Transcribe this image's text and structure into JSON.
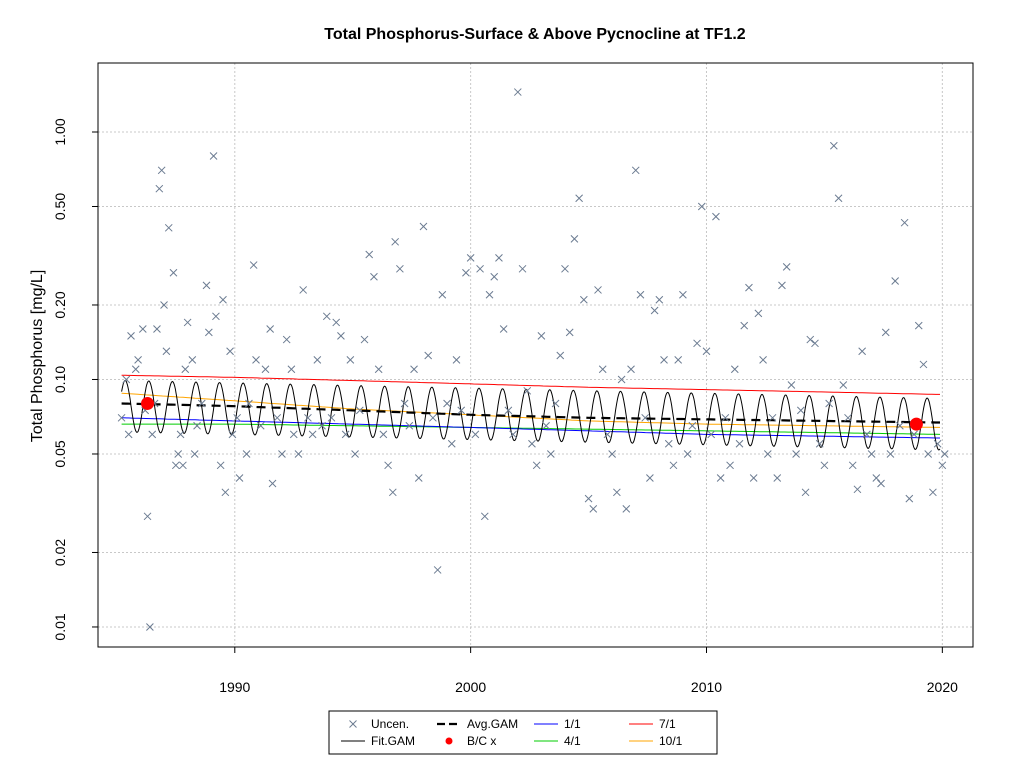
{
  "chart_data": {
    "type": "scatter",
    "title": "Total Phosphorus-Surface & Above Pycnocline at TF1.2",
    "xlabel": "",
    "ylabel": "Total Phosphorus [mg/L]",
    "x_scale": "linear",
    "y_scale": "log",
    "xlim": [
      1984.2,
      2021.3
    ],
    "ylim": [
      0.0083,
      1.9
    ],
    "grid": true,
    "x_ticks": [
      {
        "value": 1990,
        "label": "1990"
      },
      {
        "value": 2000,
        "label": "2000"
      },
      {
        "value": 2010,
        "label": "2010"
      },
      {
        "value": 2020,
        "label": "2020"
      }
    ],
    "y_ticks": [
      {
        "value": 0.01,
        "label": "0.01"
      },
      {
        "value": 0.02,
        "label": "0.02"
      },
      {
        "value": 0.05,
        "label": "0.05"
      },
      {
        "value": 0.1,
        "label": "0.10"
      },
      {
        "value": 0.2,
        "label": "0.20"
      },
      {
        "value": 0.5,
        "label": "0.50"
      },
      {
        "value": 1.0,
        "label": "1.00"
      }
    ],
    "observations": {
      "name": "Uncen.",
      "marker": "x",
      "color": "#6b7b91",
      "points": [
        [
          1985.2,
          0.07
        ],
        [
          1985.4,
          0.1
        ],
        [
          1985.5,
          0.06
        ],
        [
          1985.6,
          0.15
        ],
        [
          1985.8,
          0.11
        ],
        [
          1985.9,
          0.12
        ],
        [
          1986.1,
          0.16
        ],
        [
          1986.2,
          0.075
        ],
        [
          1986.3,
          0.028
        ],
        [
          1986.4,
          0.01
        ],
        [
          1986.5,
          0.06
        ],
        [
          1986.6,
          0.08
        ],
        [
          1986.7,
          0.16
        ],
        [
          1986.8,
          0.59
        ],
        [
          1986.9,
          0.7
        ],
        [
          1987.0,
          0.2
        ],
        [
          1987.1,
          0.13
        ],
        [
          1987.2,
          0.41
        ],
        [
          1987.4,
          0.27
        ],
        [
          1987.5,
          0.045
        ],
        [
          1987.6,
          0.05
        ],
        [
          1987.7,
          0.06
        ],
        [
          1987.8,
          0.045
        ],
        [
          1987.9,
          0.11
        ],
        [
          1988.0,
          0.17
        ],
        [
          1988.2,
          0.12
        ],
        [
          1988.3,
          0.05
        ],
        [
          1988.4,
          0.065
        ],
        [
          1988.6,
          0.08
        ],
        [
          1988.8,
          0.24
        ],
        [
          1988.9,
          0.155
        ],
        [
          1989.1,
          0.8
        ],
        [
          1989.2,
          0.18
        ],
        [
          1989.4,
          0.045
        ],
        [
          1989.5,
          0.21
        ],
        [
          1989.6,
          0.035
        ],
        [
          1989.8,
          0.13
        ],
        [
          1989.9,
          0.06
        ],
        [
          1990.1,
          0.07
        ],
        [
          1990.2,
          0.04
        ],
        [
          1990.5,
          0.05
        ],
        [
          1990.6,
          0.08
        ],
        [
          1990.8,
          0.29
        ],
        [
          1990.9,
          0.12
        ],
        [
          1991.1,
          0.065
        ],
        [
          1991.3,
          0.11
        ],
        [
          1991.5,
          0.16
        ],
        [
          1991.6,
          0.038
        ],
        [
          1991.8,
          0.07
        ],
        [
          1992.0,
          0.05
        ],
        [
          1992.2,
          0.145
        ],
        [
          1992.4,
          0.11
        ],
        [
          1992.5,
          0.06
        ],
        [
          1992.7,
          0.05
        ],
        [
          1992.9,
          0.23
        ],
        [
          1993.1,
          0.07
        ],
        [
          1993.3,
          0.06
        ],
        [
          1993.5,
          0.12
        ],
        [
          1993.7,
          0.065
        ],
        [
          1993.9,
          0.18
        ],
        [
          1994.1,
          0.07
        ],
        [
          1994.3,
          0.17
        ],
        [
          1994.5,
          0.15
        ],
        [
          1994.7,
          0.06
        ],
        [
          1994.9,
          0.12
        ],
        [
          1995.1,
          0.05
        ],
        [
          1995.3,
          0.075
        ],
        [
          1995.5,
          0.145
        ],
        [
          1995.7,
          0.32
        ],
        [
          1995.9,
          0.26
        ],
        [
          1996.1,
          0.11
        ],
        [
          1996.3,
          0.06
        ],
        [
          1996.5,
          0.045
        ],
        [
          1996.7,
          0.035
        ],
        [
          1996.8,
          0.36
        ],
        [
          1997.0,
          0.28
        ],
        [
          1997.2,
          0.08
        ],
        [
          1997.4,
          0.065
        ],
        [
          1997.6,
          0.11
        ],
        [
          1997.8,
          0.04
        ],
        [
          1998.0,
          0.415
        ],
        [
          1998.2,
          0.125
        ],
        [
          1998.4,
          0.07
        ],
        [
          1998.6,
          0.017
        ],
        [
          1998.8,
          0.22
        ],
        [
          1999.0,
          0.08
        ],
        [
          1999.2,
          0.055
        ],
        [
          1999.4,
          0.12
        ],
        [
          1999.6,
          0.075
        ],
        [
          1999.8,
          0.27
        ],
        [
          2000.0,
          0.31
        ],
        [
          2000.2,
          0.06
        ],
        [
          2000.4,
          0.28
        ],
        [
          2000.6,
          0.028
        ],
        [
          2000.8,
          0.22
        ],
        [
          2001.0,
          0.26
        ],
        [
          2001.2,
          0.31
        ],
        [
          2001.4,
          0.16
        ],
        [
          2001.6,
          0.075
        ],
        [
          2001.8,
          0.06
        ],
        [
          2002.0,
          1.45
        ],
        [
          2002.2,
          0.28
        ],
        [
          2002.4,
          0.09
        ],
        [
          2002.6,
          0.055
        ],
        [
          2002.8,
          0.045
        ],
        [
          2003.0,
          0.15
        ],
        [
          2003.2,
          0.065
        ],
        [
          2003.4,
          0.05
        ],
        [
          2003.6,
          0.08
        ],
        [
          2003.8,
          0.125
        ],
        [
          2004.0,
          0.28
        ],
        [
          2004.2,
          0.155
        ],
        [
          2004.4,
          0.37
        ],
        [
          2004.6,
          0.54
        ],
        [
          2004.8,
          0.21
        ],
        [
          2005.0,
          0.033
        ],
        [
          2005.2,
          0.03
        ],
        [
          2005.4,
          0.23
        ],
        [
          2005.6,
          0.11
        ],
        [
          2005.8,
          0.06
        ],
        [
          2006.0,
          0.05
        ],
        [
          2006.2,
          0.035
        ],
        [
          2006.4,
          0.1
        ],
        [
          2006.6,
          0.03
        ],
        [
          2006.8,
          0.11
        ],
        [
          2007.0,
          0.7
        ],
        [
          2007.2,
          0.22
        ],
        [
          2007.4,
          0.07
        ],
        [
          2007.6,
          0.04
        ],
        [
          2007.8,
          0.19
        ],
        [
          2008.0,
          0.21
        ],
        [
          2008.2,
          0.12
        ],
        [
          2008.4,
          0.055
        ],
        [
          2008.6,
          0.045
        ],
        [
          2008.8,
          0.12
        ],
        [
          2009.0,
          0.22
        ],
        [
          2009.2,
          0.05
        ],
        [
          2009.4,
          0.065
        ],
        [
          2009.6,
          0.14
        ],
        [
          2009.8,
          0.5
        ],
        [
          2010.0,
          0.13
        ],
        [
          2010.2,
          0.06
        ],
        [
          2010.4,
          0.455
        ],
        [
          2010.6,
          0.04
        ],
        [
          2010.8,
          0.07
        ],
        [
          2011.0,
          0.045
        ],
        [
          2011.2,
          0.11
        ],
        [
          2011.4,
          0.055
        ],
        [
          2011.6,
          0.165
        ],
        [
          2011.8,
          0.235
        ],
        [
          2012.0,
          0.04
        ],
        [
          2012.2,
          0.185
        ],
        [
          2012.4,
          0.12
        ],
        [
          2012.6,
          0.05
        ],
        [
          2012.8,
          0.07
        ],
        [
          2013.0,
          0.04
        ],
        [
          2013.2,
          0.24
        ],
        [
          2013.4,
          0.285
        ],
        [
          2013.6,
          0.095
        ],
        [
          2013.8,
          0.05
        ],
        [
          2014.0,
          0.075
        ],
        [
          2014.2,
          0.035
        ],
        [
          2014.4,
          0.145
        ],
        [
          2014.6,
          0.14
        ],
        [
          2014.8,
          0.055
        ],
        [
          2015.0,
          0.045
        ],
        [
          2015.2,
          0.08
        ],
        [
          2015.4,
          0.88
        ],
        [
          2015.6,
          0.54
        ],
        [
          2015.8,
          0.095
        ],
        [
          2016.0,
          0.07
        ],
        [
          2016.2,
          0.045
        ],
        [
          2016.4,
          0.036
        ],
        [
          2016.6,
          0.13
        ],
        [
          2016.8,
          0.06
        ],
        [
          2017.0,
          0.05
        ],
        [
          2017.2,
          0.04
        ],
        [
          2017.4,
          0.038
        ],
        [
          2017.6,
          0.155
        ],
        [
          2017.8,
          0.05
        ],
        [
          2018.0,
          0.25
        ],
        [
          2018.2,
          0.065
        ],
        [
          2018.4,
          0.43
        ],
        [
          2018.6,
          0.033
        ],
        [
          2018.8,
          0.06
        ],
        [
          2019.0,
          0.165
        ],
        [
          2019.2,
          0.115
        ],
        [
          2019.4,
          0.05
        ],
        [
          2019.6,
          0.035
        ],
        [
          2019.8,
          0.055
        ],
        [
          2020.0,
          0.045
        ],
        [
          2020.1,
          0.05
        ]
      ]
    },
    "series": [
      {
        "name": "Fit.GAM",
        "style": "line",
        "color": "#000000",
        "model": {
          "start": 1985.2,
          "end": 2019.9,
          "baseline_start": 0.078,
          "baseline_end": 0.066,
          "seasonal_log_amplitude": 0.24,
          "period_years": 1
        }
      },
      {
        "name": "Avg.GAM",
        "style": "dashed",
        "color": "#000000",
        "x": [
          1985.2,
          1990,
          1995,
          2000,
          2005,
          2010,
          2015,
          2019.9
        ],
        "values": [
          0.08,
          0.078,
          0.075,
          0.072,
          0.07,
          0.069,
          0.068,
          0.067
        ]
      },
      {
        "name": "1/1",
        "style": "line",
        "color": "#0000ff",
        "x": [
          1985.2,
          1990,
          1995,
          2000,
          2005,
          2010,
          2015,
          2019.9
        ],
        "values": [
          0.07,
          0.068,
          0.066,
          0.064,
          0.062,
          0.06,
          0.059,
          0.058
        ]
      },
      {
        "name": "4/1",
        "style": "line",
        "color": "#00cc00",
        "x": [
          1985.2,
          1990,
          1995,
          2000,
          2005,
          2010,
          2015,
          2019.9
        ],
        "values": [
          0.066,
          0.066,
          0.065,
          0.064,
          0.063,
          0.062,
          0.061,
          0.06
        ]
      },
      {
        "name": "7/1",
        "style": "line",
        "color": "#ff0000",
        "x": [
          1985.2,
          1990,
          1995,
          2000,
          2005,
          2010,
          2015,
          2019.9
        ],
        "values": [
          0.104,
          0.102,
          0.099,
          0.096,
          0.093,
          0.091,
          0.089,
          0.087
        ]
      },
      {
        "name": "10/1",
        "style": "line",
        "color": "#ffa500",
        "x": [
          1985.2,
          1990,
          1995,
          2000,
          2005,
          2010,
          2015,
          2019.9
        ],
        "values": [
          0.088,
          0.082,
          0.076,
          0.072,
          0.068,
          0.066,
          0.065,
          0.064
        ]
      }
    ],
    "bc_points": {
      "name": "B/C x",
      "color": "#ff0000",
      "points": [
        [
          1986.3,
          0.08
        ],
        [
          2018.9,
          0.066
        ]
      ]
    },
    "legend": {
      "placement": "bottom-center",
      "entries": [
        {
          "label": "Uncen.",
          "symbol": "x",
          "color": "#6b7b91"
        },
        {
          "label": "Avg.GAM",
          "symbol": "dashed",
          "color": "#000000"
        },
        {
          "label": "1/1",
          "symbol": "line",
          "color": "#0000ff"
        },
        {
          "label": "7/1",
          "symbol": "line",
          "color": "#ff0000"
        },
        {
          "label": "Fit.GAM",
          "symbol": "line",
          "color": "#000000"
        },
        {
          "label": "B/C x",
          "symbol": "dot",
          "color": "#ff0000"
        },
        {
          "label": "4/1",
          "symbol": "line",
          "color": "#00cc00"
        },
        {
          "label": "10/1",
          "symbol": "line",
          "color": "#ffa500"
        }
      ]
    }
  }
}
